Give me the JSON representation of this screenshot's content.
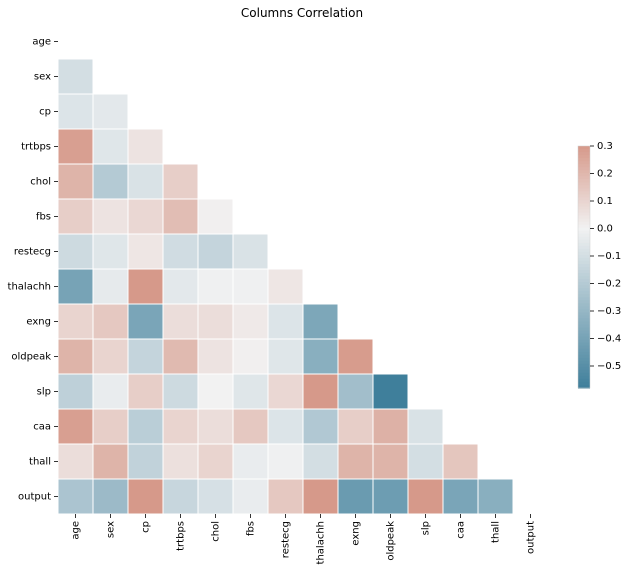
{
  "chart_data": {
    "type": "heatmap",
    "title": "Columns Correlation",
    "labels": [
      "age",
      "sex",
      "cp",
      "trtbps",
      "chol",
      "fbs",
      "restecg",
      "thalachh",
      "exng",
      "oldpeak",
      "slp",
      "caa",
      "thall",
      "output"
    ],
    "matrix": [
      [
        null
      ],
      [
        -0.1,
        null
      ],
      [
        -0.07,
        -0.05,
        null
      ],
      [
        0.28,
        -0.06,
        0.05,
        null
      ],
      [
        0.21,
        -0.2,
        -0.08,
        0.12,
        null
      ],
      [
        0.12,
        0.05,
        0.09,
        0.18,
        0.01,
        null
      ],
      [
        -0.12,
        -0.06,
        0.04,
        -0.11,
        -0.15,
        -0.08,
        null
      ],
      [
        -0.4,
        -0.04,
        0.3,
        -0.05,
        -0.01,
        -0.01,
        0.04,
        null
      ],
      [
        0.1,
        0.14,
        -0.39,
        0.07,
        0.07,
        0.03,
        -0.07,
        -0.38,
        null
      ],
      [
        0.21,
        0.1,
        -0.15,
        0.19,
        0.05,
        0.01,
        -0.06,
        -0.34,
        0.29,
        null
      ],
      [
        -0.17,
        -0.03,
        0.12,
        -0.12,
        -0.0,
        -0.06,
        0.09,
        0.39,
        -0.26,
        -0.58,
        null
      ],
      [
        0.28,
        0.12,
        -0.18,
        0.1,
        0.07,
        0.14,
        -0.07,
        -0.21,
        0.12,
        0.22,
        -0.08,
        null
      ],
      [
        0.07,
        0.21,
        -0.16,
        0.06,
        0.1,
        -0.03,
        -0.01,
        -0.1,
        0.21,
        0.21,
        -0.1,
        0.15,
        null
      ],
      [
        -0.23,
        -0.28,
        0.43,
        -0.14,
        -0.09,
        -0.03,
        0.14,
        0.42,
        -0.44,
        -0.43,
        0.35,
        -0.39,
        -0.34,
        null
      ]
    ],
    "colorbar": {
      "min": -0.58,
      "max": 0.3,
      "ticks": [
        0.3,
        0.2,
        0.1,
        0.0,
        -0.1,
        -0.2,
        -0.3,
        -0.4,
        -0.5
      ],
      "tick_labels": [
        "0.3",
        "0.2",
        "0.1",
        "0.0",
        "−0.1",
        "−0.2",
        "−0.3",
        "−0.4",
        "−0.5"
      ]
    },
    "colors": {
      "negative": "#3f7f9b",
      "center": "#f2f2f2",
      "positive": "#d6998a"
    },
    "mask": "upper-triangle"
  }
}
